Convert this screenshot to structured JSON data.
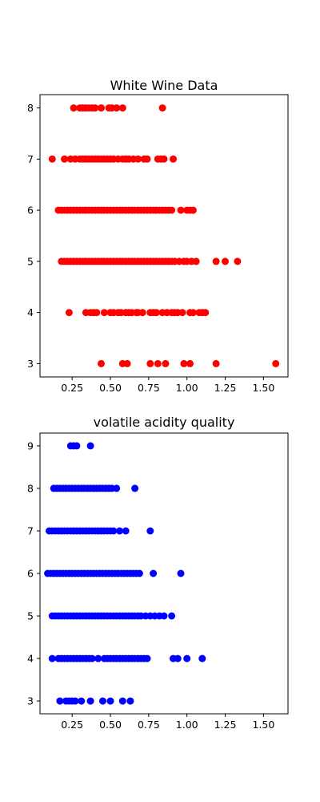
{
  "chart_data": [
    {
      "type": "scatter",
      "title": "White Wine Data",
      "color": "#ff0000",
      "xlabel": "",
      "ylabel": "",
      "xlim": [
        0.04,
        1.66
      ],
      "ylim": [
        2.74,
        8.26
      ],
      "xticks": [
        "0.25",
        "0.50",
        "0.75",
        "1.00",
        "1.25",
        "1.50"
      ],
      "yticks": [
        "3",
        "4",
        "5",
        "6",
        "7",
        "8"
      ],
      "points": [
        {
          "y": 8,
          "x": [
            0.26,
            0.3,
            0.32,
            0.34,
            0.36,
            0.38,
            0.4,
            0.44,
            0.49,
            0.51,
            0.54,
            0.58,
            0.84
          ]
        },
        {
          "y": 7,
          "x": [
            0.12,
            0.2,
            0.24,
            0.27,
            0.3,
            0.32,
            0.34,
            0.36,
            0.38,
            0.4,
            0.42,
            0.44,
            0.46,
            0.48,
            0.5,
            0.52,
            0.55,
            0.58,
            0.6,
            0.62,
            0.65,
            0.68,
            0.72,
            0.74,
            0.81,
            0.83,
            0.85,
            0.91
          ]
        },
        {
          "y": 6,
          "x": [
            0.16,
            0.18,
            0.2,
            0.22,
            0.24,
            0.26,
            0.28,
            0.3,
            0.32,
            0.34,
            0.36,
            0.38,
            0.4,
            0.42,
            0.44,
            0.46,
            0.48,
            0.5,
            0.52,
            0.54,
            0.56,
            0.58,
            0.6,
            0.62,
            0.64,
            0.66,
            0.68,
            0.7,
            0.72,
            0.74,
            0.76,
            0.78,
            0.8,
            0.82,
            0.84,
            0.86,
            0.88,
            0.9,
            0.96,
            1.0,
            1.02,
            1.04
          ]
        },
        {
          "y": 5,
          "x": [
            0.18,
            0.2,
            0.22,
            0.24,
            0.26,
            0.28,
            0.3,
            0.32,
            0.34,
            0.36,
            0.38,
            0.4,
            0.42,
            0.44,
            0.46,
            0.48,
            0.5,
            0.52,
            0.54,
            0.56,
            0.58,
            0.6,
            0.62,
            0.64,
            0.66,
            0.68,
            0.7,
            0.72,
            0.74,
            0.76,
            0.78,
            0.8,
            0.82,
            0.84,
            0.86,
            0.88,
            0.9,
            0.92,
            0.95,
            0.98,
            1.0,
            1.03,
            1.06,
            1.19,
            1.25,
            1.33
          ]
        },
        {
          "y": 4,
          "x": [
            0.23,
            0.34,
            0.37,
            0.39,
            0.41,
            0.46,
            0.5,
            0.52,
            0.55,
            0.57,
            0.6,
            0.62,
            0.64,
            0.67,
            0.68,
            0.71,
            0.76,
            0.78,
            0.8,
            0.84,
            0.87,
            0.9,
            0.92,
            0.94,
            0.97,
            1.02,
            1.04,
            1.08,
            1.1,
            1.12
          ]
        },
        {
          "y": 3,
          "x": [
            0.44,
            0.58,
            0.61,
            0.76,
            0.81,
            0.86,
            0.98,
            1.02,
            1.19,
            1.58
          ]
        }
      ]
    },
    {
      "type": "scatter",
      "title": "volatile acidity quality",
      "color": "#0000ff",
      "xlabel": "",
      "ylabel": "",
      "xlim": [
        0.04,
        1.66
      ],
      "ylim": [
        2.7,
        9.3
      ],
      "xticks": [
        "0.25",
        "0.50",
        "0.75",
        "1.00",
        "1.25",
        "1.50"
      ],
      "yticks": [
        "3",
        "4",
        "5",
        "6",
        "7",
        "8",
        "9"
      ],
      "points": [
        {
          "y": 9,
          "x": [
            0.24,
            0.26,
            0.28,
            0.37
          ]
        },
        {
          "y": 8,
          "x": [
            0.13,
            0.15,
            0.17,
            0.19,
            0.21,
            0.23,
            0.25,
            0.27,
            0.29,
            0.31,
            0.33,
            0.35,
            0.37,
            0.39,
            0.41,
            0.43,
            0.45,
            0.47,
            0.49,
            0.51,
            0.54,
            0.66
          ]
        },
        {
          "y": 7,
          "x": [
            0.1,
            0.12,
            0.14,
            0.16,
            0.18,
            0.2,
            0.22,
            0.24,
            0.26,
            0.28,
            0.3,
            0.32,
            0.34,
            0.36,
            0.38,
            0.4,
            0.42,
            0.44,
            0.46,
            0.48,
            0.5,
            0.52,
            0.56,
            0.6,
            0.76
          ]
        },
        {
          "y": 6,
          "x": [
            0.09,
            0.11,
            0.13,
            0.15,
            0.17,
            0.19,
            0.21,
            0.23,
            0.25,
            0.27,
            0.29,
            0.31,
            0.33,
            0.35,
            0.37,
            0.39,
            0.41,
            0.43,
            0.45,
            0.47,
            0.49,
            0.51,
            0.53,
            0.55,
            0.57,
            0.59,
            0.61,
            0.63,
            0.65,
            0.67,
            0.69,
            0.78,
            0.96
          ]
        },
        {
          "y": 5,
          "x": [
            0.12,
            0.14,
            0.16,
            0.18,
            0.2,
            0.22,
            0.24,
            0.26,
            0.28,
            0.3,
            0.32,
            0.34,
            0.36,
            0.38,
            0.4,
            0.42,
            0.44,
            0.46,
            0.48,
            0.5,
            0.52,
            0.54,
            0.56,
            0.58,
            0.6,
            0.62,
            0.64,
            0.66,
            0.68,
            0.7,
            0.73,
            0.76,
            0.79,
            0.82,
            0.85,
            0.9
          ]
        },
        {
          "y": 4,
          "x": [
            0.12,
            0.16,
            0.18,
            0.2,
            0.22,
            0.24,
            0.26,
            0.28,
            0.3,
            0.32,
            0.34,
            0.36,
            0.38,
            0.42,
            0.46,
            0.48,
            0.5,
            0.52,
            0.54,
            0.56,
            0.58,
            0.6,
            0.62,
            0.64,
            0.66,
            0.68,
            0.7,
            0.72,
            0.74,
            0.91,
            0.94,
            1.0,
            1.1
          ]
        },
        {
          "y": 3,
          "x": [
            0.17,
            0.21,
            0.23,
            0.25,
            0.27,
            0.31,
            0.37,
            0.45,
            0.5,
            0.58,
            0.63
          ]
        }
      ]
    }
  ]
}
